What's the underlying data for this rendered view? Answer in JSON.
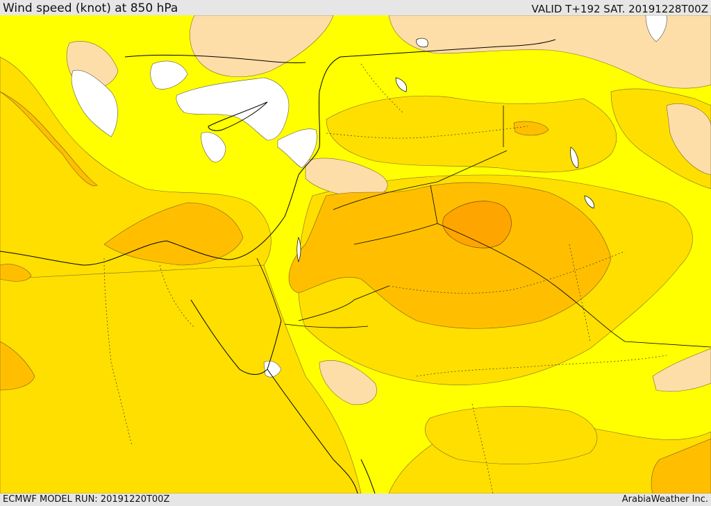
{
  "header": {
    "title": "Wind speed (knot) at 850 hPa",
    "valid": "VALID T+192 SAT. 20191228T00Z"
  },
  "footer": {
    "model_run": "ECMWF MODEL RUN: 20191220T00Z",
    "credit": "ArabiaWeather Inc."
  },
  "colors": {
    "lightest": "#ffffff",
    "bright_yellow": "#ffff00",
    "gold": "#ffdf00",
    "tan": "#fddea8",
    "amber": "#ffbf00",
    "orange": "#ffa500"
  }
}
